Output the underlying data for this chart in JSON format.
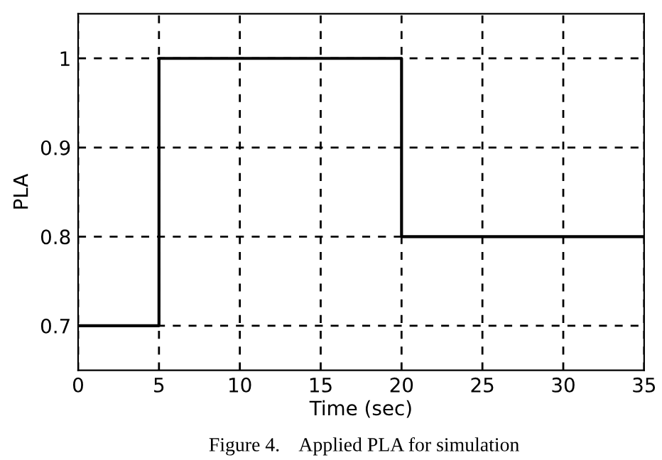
{
  "chart_data": {
    "type": "step",
    "xlabel": "Time (sec)",
    "ylabel": "PLA",
    "x": [
      0,
      5,
      20,
      35
    ],
    "series": [
      {
        "color": "#000000",
        "values": [
          0.7,
          1,
          0.8,
          0.8
        ]
      }
    ],
    "xlim": [
      0,
      35
    ],
    "ylim": [
      0.65,
      1.05
    ],
    "xticks": [
      0,
      5,
      10,
      15,
      20,
      25,
      30,
      35
    ],
    "yticks": [
      0.7,
      0.8,
      0.9,
      1
    ],
    "grid": true,
    "line_style": "solid",
    "annotations": [
      "Figure 4.    Applied PLA for simulation"
    ]
  }
}
